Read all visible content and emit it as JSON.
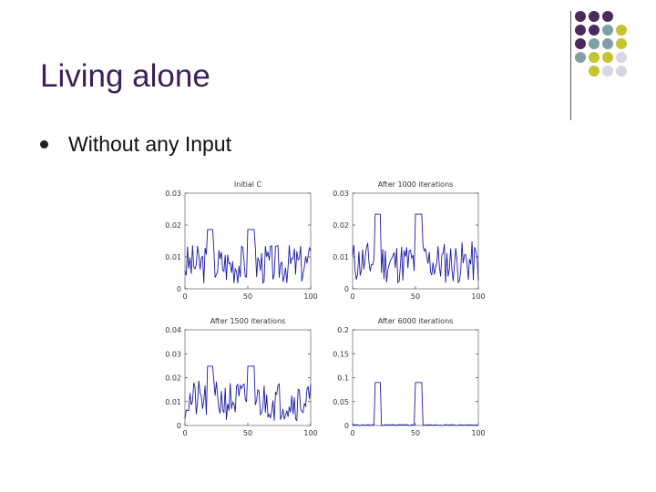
{
  "slide": {
    "title": "Living alone",
    "bullets": [
      "Without any Input"
    ]
  },
  "decoration": {
    "dot_colors": {
      "purple": "#4b2a5e",
      "teal": "#7f9fa3",
      "olive": "#c5c32f",
      "lavender": "#d6d6e4"
    },
    "grid": [
      [
        "purple",
        "purple",
        "purple"
      ],
      [
        "purple",
        "purple",
        "teal",
        "olive"
      ],
      [
        "purple",
        "teal",
        "teal",
        "olive"
      ],
      [
        "teal",
        "olive",
        "olive",
        "lavender"
      ],
      [
        "olive",
        "lavender",
        "lavender"
      ]
    ]
  },
  "chart_data": [
    {
      "type": "line",
      "title": "Initial C",
      "xlim": [
        0,
        100
      ],
      "ylim": [
        0,
        0.03
      ],
      "yticks": [
        "0.03",
        "0.02",
        "0.01",
        "0"
      ],
      "xticks": [
        "0",
        "50",
        "100"
      ],
      "pattern": "noise",
      "seed": 3
    },
    {
      "type": "line",
      "title": "After 1000 iterations",
      "xlim": [
        0,
        100
      ],
      "ylim": [
        0,
        0.03
      ],
      "yticks": [
        "0.03",
        "0.02",
        "0.01",
        "0"
      ],
      "xticks": [
        "0",
        "50",
        "100"
      ],
      "pattern": "noise-peaks",
      "seed": 11
    },
    {
      "type": "line",
      "title": "After 1500 iterations",
      "xlim": [
        0,
        100
      ],
      "ylim": [
        0,
        0.04
      ],
      "yticks": [
        "0.04",
        "0.03",
        "0.02",
        "0.01",
        "0"
      ],
      "xticks": [
        "0",
        "50",
        "100"
      ],
      "pattern": "noise",
      "seed": 21
    },
    {
      "type": "line",
      "title": "After 6000 iterations",
      "xlim": [
        0,
        100
      ],
      "ylim": [
        0,
        0.2
      ],
      "yticks": [
        "0.2",
        "0.15",
        "0.1",
        "0.05",
        "0"
      ],
      "xticks": [
        "0",
        "50",
        "100"
      ],
      "pattern": "peaks",
      "seed": 5
    }
  ]
}
